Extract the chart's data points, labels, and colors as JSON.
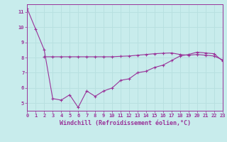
{
  "xlabel": "Windchill (Refroidissement éolien,°C)",
  "background_color": "#c8ecec",
  "line_color": "#993399",
  "grid_color": "#b8e0e0",
  "x_line1": [
    0,
    1,
    2,
    3,
    4,
    5,
    6,
    7,
    8,
    9,
    10,
    11,
    12,
    13,
    14,
    15,
    16,
    17,
    18,
    19,
    20,
    21,
    22,
    23
  ],
  "y_line1": [
    11.2,
    9.85,
    8.5,
    5.3,
    5.2,
    5.55,
    4.72,
    5.8,
    5.45,
    5.8,
    6.0,
    6.5,
    6.6,
    7.0,
    7.1,
    7.35,
    7.5,
    7.8,
    8.1,
    8.2,
    8.35,
    8.3,
    8.25,
    7.78
  ],
  "x_line2": [
    2,
    3,
    4,
    5,
    6,
    7,
    8,
    9,
    10,
    11,
    12,
    13,
    14,
    15,
    16,
    17,
    18,
    19,
    20,
    21,
    22,
    23
  ],
  "y_line2": [
    8.05,
    8.05,
    8.05,
    8.05,
    8.05,
    8.05,
    8.05,
    8.05,
    8.05,
    8.08,
    8.1,
    8.15,
    8.2,
    8.25,
    8.28,
    8.3,
    8.2,
    8.15,
    8.2,
    8.15,
    8.1,
    7.85
  ],
  "xlim": [
    0,
    23
  ],
  "ylim": [
    4.5,
    11.5
  ],
  "xticks": [
    0,
    1,
    2,
    3,
    4,
    5,
    6,
    7,
    8,
    9,
    10,
    11,
    12,
    13,
    14,
    15,
    16,
    17,
    18,
    19,
    20,
    21,
    22,
    23
  ],
  "yticks": [
    5,
    6,
    7,
    8,
    9,
    10,
    11
  ],
  "tick_fontsize": 5,
  "xlabel_fontsize": 6
}
